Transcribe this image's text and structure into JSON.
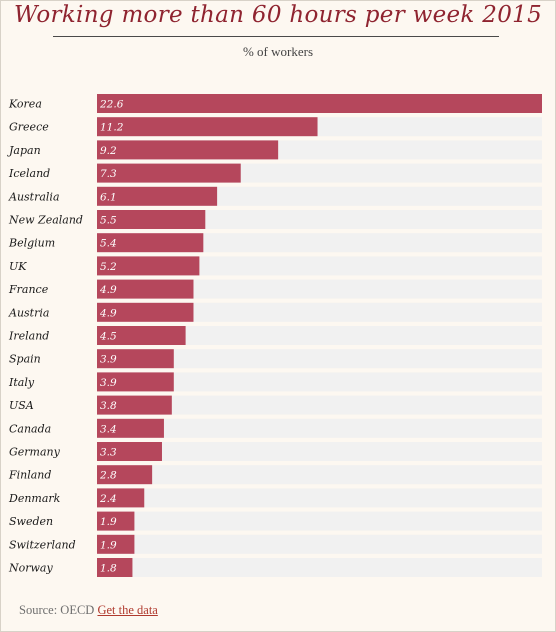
{
  "header": {
    "title": "Working more than 60 hours per week 2015",
    "subtitle": "% of workers"
  },
  "footer": {
    "source_prefix": "Source: OECD",
    "link_label": "Get the data"
  },
  "colors": {
    "bar": "#b5475c",
    "track": "#f1f1f1",
    "title": "#8f2430",
    "link": "#b03a2e"
  },
  "chart_data": {
    "type": "bar",
    "orientation": "horizontal",
    "title": "Working more than 60 hours per week 2015",
    "subtitle": "% of workers",
    "categories": [
      "Korea",
      "Greece",
      "Japan",
      "Iceland",
      "Australia",
      "New Zealand",
      "Belgium",
      "UK",
      "France",
      "Austria",
      "Ireland",
      "Spain",
      "Italy",
      "USA",
      "Canada",
      "Germany",
      "Finland",
      "Denmark",
      "Sweden",
      "Switzerland",
      "Norway"
    ],
    "values": [
      22.6,
      11.2,
      9.2,
      7.3,
      6.1,
      5.5,
      5.4,
      5.2,
      4.9,
      4.9,
      4.5,
      3.9,
      3.9,
      3.8,
      3.4,
      3.3,
      2.8,
      2.4,
      1.9,
      1.9,
      1.8
    ],
    "xlim": [
      0,
      22.6
    ],
    "grid": false,
    "legend": "none"
  }
}
